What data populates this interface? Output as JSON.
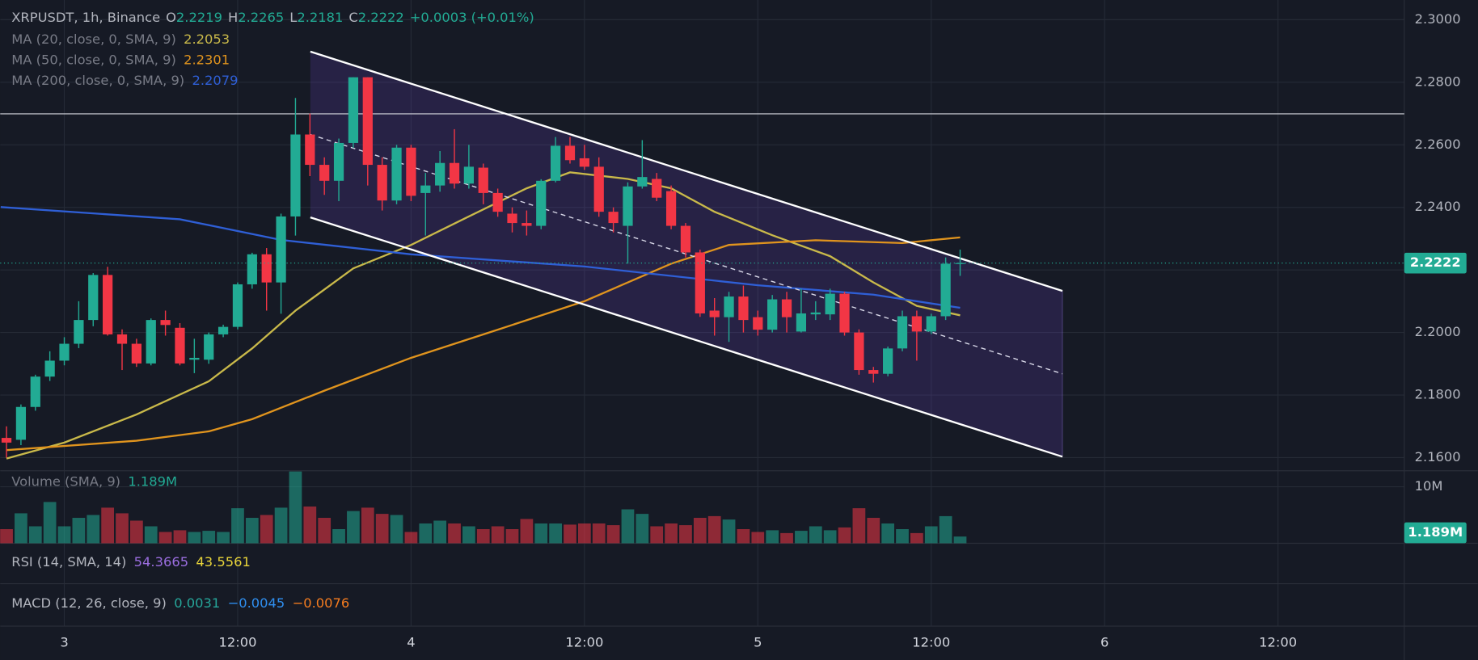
{
  "chart_data": {
    "type": "candlestick",
    "header": {
      "symbol": "XRPUSDT, 1h, Binance",
      "fields": [
        {
          "key": "O",
          "value": "2.2219"
        },
        {
          "key": "H",
          "value": "2.2265"
        },
        {
          "key": "L",
          "value": "2.2181"
        },
        {
          "key": "C",
          "value": "2.2222"
        }
      ],
      "change": "+0.0003 (+0.01%)"
    },
    "up_color": "#22ab94",
    "down_color": "#f23645",
    "xlim": [
      -4.435,
      92.74
    ],
    "xticks": [
      {
        "value": 0,
        "label": "3"
      },
      {
        "value": 12,
        "label": "12:00"
      },
      {
        "value": 24,
        "label": "4"
      },
      {
        "value": 36,
        "label": "12:00"
      },
      {
        "value": 48,
        "label": "5"
      },
      {
        "value": 60,
        "label": "12:00"
      },
      {
        "value": 72,
        "label": "6"
      },
      {
        "value": 84,
        "label": "12:00"
      }
    ],
    "ylim": [
      2.1558,
      2.3063
    ],
    "yticks": [
      {
        "value": 2.3,
        "label": "2.3000"
      },
      {
        "value": 2.28,
        "label": "2.2800"
      },
      {
        "value": 2.26,
        "label": "2.2600"
      },
      {
        "value": 2.24,
        "label": "2.2400"
      },
      {
        "value": 2.22,
        "label": "2.2200"
      },
      {
        "value": 2.2,
        "label": "2.2000"
      },
      {
        "value": 2.18,
        "label": "2.1800"
      },
      {
        "value": 2.16,
        "label": "2.1600"
      }
    ],
    "grid": true,
    "current": {
      "value": 2.2222,
      "label": "2.2222"
    },
    "x": [
      -4,
      -3,
      -2,
      -1,
      0,
      1,
      2,
      3,
      4,
      5,
      6,
      7,
      8,
      9,
      10,
      11,
      12,
      13,
      14,
      15,
      16,
      17,
      18,
      19,
      20,
      21,
      22,
      23,
      24,
      25,
      26,
      27,
      28,
      29,
      30,
      31,
      32,
      33,
      34,
      35,
      36,
      37,
      38,
      39,
      40,
      41,
      42,
      43,
      44,
      45,
      46,
      47,
      48,
      49,
      50,
      51,
      52,
      53,
      54,
      55,
      56,
      57,
      58,
      59,
      60,
      61,
      62
    ],
    "ohlc": [
      [
        2.1663,
        2.17,
        2.16,
        2.1648
      ],
      [
        2.1657,
        2.177,
        2.164,
        2.1762
      ],
      [
        2.1762,
        2.1865,
        2.175,
        2.1859
      ],
      [
        2.1859,
        2.194,
        2.1845,
        2.191
      ],
      [
        2.191,
        2.1985,
        2.1895,
        2.1964
      ],
      [
        2.1964,
        2.21,
        2.195,
        2.204
      ],
      [
        2.204,
        2.219,
        2.202,
        2.2184
      ],
      [
        2.2184,
        2.221,
        2.199,
        2.1994
      ],
      [
        2.1994,
        2.201,
        2.188,
        2.1964
      ],
      [
        2.1964,
        2.198,
        2.189,
        2.1901
      ],
      [
        2.1901,
        2.2045,
        2.1895,
        2.204
      ],
      [
        2.204,
        2.207,
        2.199,
        2.2024
      ],
      [
        2.2015,
        2.203,
        2.1895,
        2.1901
      ],
      [
        2.1913,
        2.198,
        2.187,
        2.1919
      ],
      [
        2.1913,
        2.2,
        2.19,
        2.1994
      ],
      [
        2.1994,
        2.2025,
        2.1985,
        2.2018
      ],
      [
        2.2018,
        2.216,
        2.201,
        2.2154
      ],
      [
        2.2154,
        2.2255,
        2.214,
        2.225
      ],
      [
        2.225,
        2.227,
        2.207,
        2.216
      ],
      [
        2.216,
        2.238,
        2.206,
        2.2371
      ],
      [
        2.2371,
        2.275,
        2.231,
        2.2633
      ],
      [
        2.2633,
        2.27,
        2.25,
        2.2536
      ],
      [
        2.2536,
        2.256,
        2.244,
        2.2485
      ],
      [
        2.2485,
        2.262,
        2.242,
        2.2606
      ],
      [
        2.2606,
        2.2816,
        2.259,
        2.2816
      ],
      [
        2.2816,
        2.2816,
        2.247,
        2.2536
      ],
      [
        2.2536,
        2.256,
        2.239,
        2.2422
      ],
      [
        2.2422,
        2.26,
        2.241,
        2.2591
      ],
      [
        2.2591,
        2.26,
        2.242,
        2.2437
      ],
      [
        2.2446,
        2.251,
        2.231,
        2.247
      ],
      [
        2.247,
        2.258,
        2.245,
        2.2542
      ],
      [
        2.2542,
        2.265,
        2.246,
        2.2476
      ],
      [
        2.2476,
        2.26,
        2.246,
        2.253
      ],
      [
        2.2527,
        2.254,
        2.241,
        2.2446
      ],
      [
        2.2446,
        2.246,
        2.237,
        2.2386
      ],
      [
        2.238,
        2.24,
        2.232,
        2.235
      ],
      [
        2.235,
        2.239,
        2.231,
        2.2341
      ],
      [
        2.2341,
        2.249,
        2.233,
        2.2485
      ],
      [
        2.2485,
        2.2625,
        2.248,
        2.2597
      ],
      [
        2.2597,
        2.2625,
        2.254,
        2.2551
      ],
      [
        2.2557,
        2.26,
        2.252,
        2.253
      ],
      [
        2.253,
        2.256,
        2.237,
        2.2386
      ],
      [
        2.2386,
        2.24,
        2.232,
        2.235
      ],
      [
        2.2341,
        2.248,
        2.222,
        2.2467
      ],
      [
        2.2467,
        2.2615,
        2.246,
        2.2497
      ],
      [
        2.2491,
        2.251,
        2.242,
        2.2431
      ],
      [
        2.2452,
        2.247,
        2.233,
        2.2341
      ],
      [
        2.2341,
        2.235,
        2.224,
        2.2256
      ],
      [
        2.2256,
        2.2265,
        2.205,
        2.2061
      ],
      [
        2.207,
        2.211,
        2.199,
        2.2049
      ],
      [
        2.2049,
        2.213,
        2.197,
        2.2115
      ],
      [
        2.2115,
        2.215,
        2.2,
        2.204
      ],
      [
        2.2049,
        2.207,
        2.199,
        2.2009
      ],
      [
        2.2009,
        2.212,
        2.2,
        2.2106
      ],
      [
        2.2106,
        2.213,
        2.2,
        2.2049
      ],
      [
        2.2003,
        2.214,
        2.2,
        2.2061
      ],
      [
        2.2058,
        2.21,
        2.204,
        2.2064
      ],
      [
        2.2058,
        2.214,
        2.204,
        2.2124
      ],
      [
        2.2124,
        2.213,
        2.199,
        2.2
      ],
      [
        2.2,
        2.201,
        2.1865,
        2.188
      ],
      [
        2.188,
        2.189,
        2.184,
        2.1868
      ],
      [
        2.1868,
        2.1955,
        2.186,
        2.1949
      ],
      [
        2.1949,
        2.207,
        2.194,
        2.2052
      ],
      [
        2.2052,
        2.207,
        2.191,
        2.2003
      ],
      [
        2.2003,
        2.206,
        2.1995,
        2.2052
      ],
      [
        2.2052,
        2.224,
        2.204,
        2.222
      ],
      [
        2.2219,
        2.2265,
        2.2181,
        2.2222
      ]
    ],
    "hline": 2.2699,
    "channel": {
      "upper": {
        "x": [
          17.03,
          69.08
        ],
        "y": [
          2.2898,
          2.2133
        ]
      },
      "middle": {
        "x": [
          17.03,
          69.08
        ],
        "y": [
          2.2633,
          2.1868
        ]
      },
      "lower": {
        "x": [
          17.03,
          69.08
        ],
        "y": [
          2.2368,
          2.1603
        ]
      }
    },
    "series": [
      {
        "name": "MA (20, close, 0, SMA, 9)",
        "last": "2.2053",
        "color": "#c9b94a",
        "x": [
          -4,
          0,
          5,
          10,
          13,
          16,
          20,
          24,
          28,
          32,
          35,
          39,
          42,
          45,
          49,
          53,
          56,
          59,
          62
        ],
        "values": [
          2.1597,
          2.1648,
          2.1738,
          2.1844,
          2.1949,
          2.207,
          2.2205,
          2.228,
          2.2371,
          2.2461,
          2.2512,
          2.2491,
          2.2461,
          2.2386,
          2.2311,
          2.2244,
          2.216,
          2.2085,
          2.2055
        ]
      },
      {
        "name": "MA (50, close, 0, SMA, 9)",
        "last": "2.2301",
        "color": "#e0941e",
        "x": [
          -4,
          5,
          10,
          13,
          18,
          24,
          30,
          36,
          42,
          46,
          52,
          58,
          62
        ],
        "values": [
          2.1624,
          2.1654,
          2.1684,
          2.1723,
          2.1814,
          2.1919,
          2.2009,
          2.21,
          2.222,
          2.228,
          2.2295,
          2.2286,
          2.2304
        ]
      },
      {
        "name": "MA (200, close, 0, SMA, 9)",
        "last": "2.2079",
        "color": "#2f5fd6",
        "x": [
          -4.4,
          8,
          15,
          24,
          36,
          48,
          56,
          62
        ],
        "values": [
          2.2401,
          2.2362,
          2.2296,
          2.225,
          2.2211,
          2.2151,
          2.2121,
          2.2079
        ]
      }
    ],
    "volume": {
      "title": "Volume (SMA, 9)",
      "last": "1.189M",
      "ylim": [
        0,
        12830000
      ],
      "yticks": [
        {
          "value": 10000000,
          "label": "10M"
        }
      ],
      "current": {
        "value": 1189000,
        "label": "1.189M"
      },
      "values": [
        2500000,
        5300000,
        3000000,
        7300000,
        3000000,
        4500000,
        5000000,
        6300000,
        5300000,
        4000000,
        3000000,
        2000000,
        2300000,
        2000000,
        2200000,
        2000000,
        6200000,
        4500000,
        5000000,
        6300000,
        12700000,
        6500000,
        4500000,
        2500000,
        5700000,
        6300000,
        5200000,
        5000000,
        2000000,
        3500000,
        4000000,
        3500000,
        3000000,
        2500000,
        3000000,
        2500000,
        4300000,
        3500000,
        3500000,
        3300000,
        3500000,
        3500000,
        3200000,
        6000000,
        5200000,
        3000000,
        3500000,
        3200000,
        4500000,
        4800000,
        4200000,
        2500000,
        2000000,
        2300000,
        1800000,
        2200000,
        3000000,
        2300000,
        2800000,
        6200000,
        4500000,
        3500000,
        2500000,
        1800000,
        3000000,
        4800000,
        1189000
      ]
    },
    "rsi": {
      "title": "RSI (14, SMA, 14)",
      "values": [
        "54.3665",
        "43.5561"
      ],
      "colors": [
        "#9b6ee0",
        "#e8d43a"
      ]
    },
    "macd": {
      "title": "MACD (12, 26, close, 9)",
      "values": [
        "0.0031",
        "−0.0045",
        "−0.0076"
      ],
      "colors": [
        "#26a69a",
        "#2f8ff0",
        "#f57c1f"
      ]
    }
  }
}
